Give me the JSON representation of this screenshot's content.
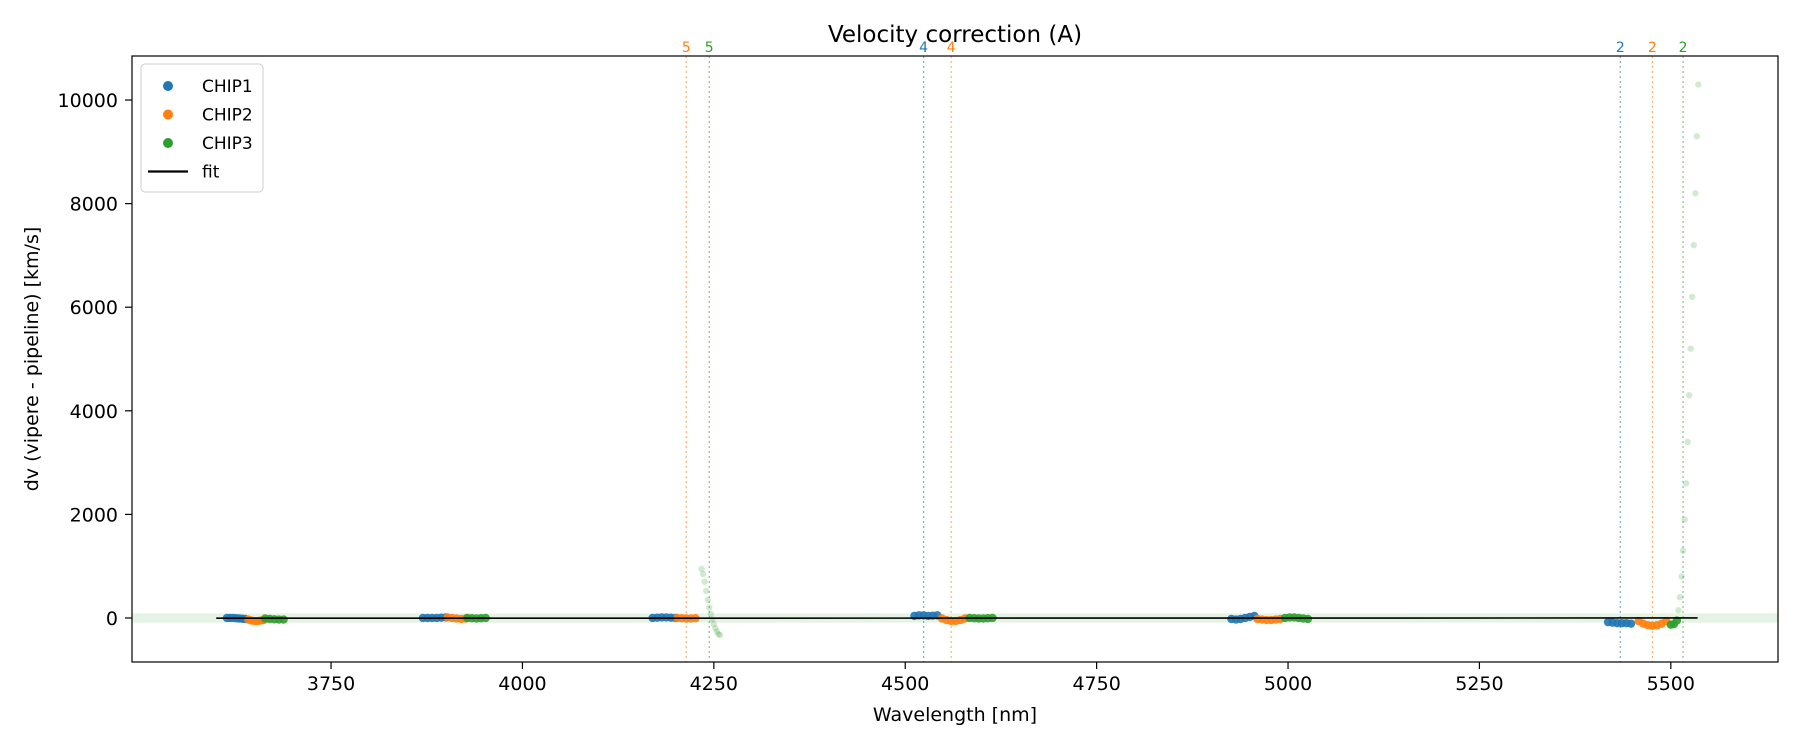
{
  "chart_data": {
    "type": "scatter",
    "title": "Velocity correction (A)",
    "xlabel": "Wavelength [nm]",
    "ylabel": "dv (vipere - pipeline) [km/s]",
    "xlim": [
      3490,
      5640
    ],
    "ylim": [
      -850,
      10850
    ],
    "xticks": [
      3750,
      4000,
      4250,
      4500,
      4750,
      5000,
      5250,
      5500
    ],
    "yticks": [
      0,
      2000,
      4000,
      6000,
      8000,
      10000
    ],
    "colors": {
      "CHIP1": "#1f77b4",
      "CHIP2": "#ff7f0e",
      "CHIP3": "#2ca02c",
      "fit": "#000000",
      "band": "#2ca02c"
    },
    "legend": {
      "position": "upper-left",
      "entries": [
        {
          "label": "CHIP1",
          "kind": "marker",
          "color": "#1f77b4"
        },
        {
          "label": "CHIP2",
          "kind": "marker",
          "color": "#ff7f0e"
        },
        {
          "label": "CHIP3",
          "kind": "marker",
          "color": "#2ca02c"
        },
        {
          "label": "fit",
          "kind": "line",
          "color": "#000000"
        }
      ]
    },
    "fit_line": {
      "x": [
        3600,
        5535
      ],
      "y": [
        -5,
        0
      ]
    },
    "band": {
      "y": [
        -90,
        90
      ]
    },
    "order_lines": [
      {
        "x": 4214,
        "label": "5",
        "chip": "CHIP2",
        "color": "#ff7f0e"
      },
      {
        "x": 4244,
        "label": "5",
        "chip": "CHIP3",
        "color": "#2ca02c"
      },
      {
        "x": 4524,
        "label": "4",
        "chip": "CHIP1",
        "color": "#1f77b4"
      },
      {
        "x": 4560,
        "label": "4",
        "chip": "CHIP2",
        "color": "#ff7f0e"
      },
      {
        "x": 5434,
        "label": "2",
        "chip": "CHIP1",
        "color": "#1f77b4"
      },
      {
        "x": 5476,
        "label": "2",
        "chip": "CHIP2",
        "color": "#ff7f0e"
      },
      {
        "x": 5516,
        "label": "2",
        "chip": "CHIP3",
        "color": "#2ca02c"
      }
    ],
    "series": [
      {
        "name": "CHIP1",
        "segment": 1,
        "x": [
          3614,
          3618,
          3622,
          3626,
          3630,
          3634,
          3638
        ],
        "y": [
          0,
          0,
          0,
          -5,
          -10,
          -15,
          -20
        ]
      },
      {
        "name": "CHIP2",
        "segment": 1,
        "x": [
          3642,
          3646,
          3650,
          3654,
          3658,
          3662
        ],
        "y": [
          -30,
          -50,
          -60,
          -60,
          -50,
          -40
        ]
      },
      {
        "name": "CHIP3",
        "segment": 1,
        "x": [
          3664,
          3670,
          3676,
          3682,
          3688
        ],
        "y": [
          -10,
          -20,
          -25,
          -30,
          -30
        ]
      },
      {
        "name": "CHIP1",
        "segment": 2,
        "x": [
          3870,
          3876,
          3882,
          3888,
          3894,
          3900
        ],
        "y": [
          0,
          0,
          0,
          0,
          5,
          10
        ]
      },
      {
        "name": "CHIP2",
        "segment": 2,
        "x": [
          3902,
          3908,
          3914,
          3920,
          3926
        ],
        "y": [
          10,
          0,
          -10,
          -20,
          -10
        ]
      },
      {
        "name": "CHIP3",
        "segment": 2,
        "x": [
          3928,
          3934,
          3940,
          3946,
          3952
        ],
        "y": [
          0,
          -5,
          -10,
          -5,
          0
        ]
      },
      {
        "name": "CHIP1",
        "segment": 3,
        "x": [
          4170,
          4176,
          4182,
          4188,
          4194,
          4200
        ],
        "y": [
          0,
          5,
          10,
          10,
          5,
          0
        ]
      },
      {
        "name": "CHIP2",
        "segment": 3,
        "x": [
          4202,
          4208,
          4214,
          4220,
          4226
        ],
        "y": [
          0,
          -5,
          -10,
          -10,
          -5
        ]
      },
      {
        "name": "CHIP3",
        "segment": 3,
        "faded": true,
        "x": [
          4234,
          4236,
          4238,
          4240,
          4242,
          4244,
          4246,
          4248,
          4250,
          4252,
          4254,
          4256,
          4258
        ],
        "y": [
          950,
          850,
          700,
          520,
          350,
          200,
          80,
          -30,
          -120,
          -200,
          -260,
          -310,
          -330
        ]
      },
      {
        "name": "CHIP1",
        "segment": 4,
        "x": [
          4512,
          4518,
          4524,
          4530,
          4536,
          4542
        ],
        "y": [
          40,
          50,
          50,
          40,
          45,
          50
        ]
      },
      {
        "name": "CHIP2",
        "segment": 4,
        "x": [
          4548,
          4554,
          4560,
          4566,
          4572,
          4578
        ],
        "y": [
          -10,
          -40,
          -60,
          -60,
          -40,
          -10
        ]
      },
      {
        "name": "CHIP3",
        "segment": 4,
        "x": [
          4584,
          4590,
          4596,
          4602,
          4608,
          4614
        ],
        "y": [
          0,
          -5,
          -10,
          -10,
          -5,
          0
        ]
      },
      {
        "name": "CHIP1",
        "segment": 5,
        "x": [
          4926,
          4932,
          4938,
          4944,
          4950,
          4956
        ],
        "y": [
          -20,
          -30,
          -20,
          0,
          20,
          40
        ]
      },
      {
        "name": "CHIP2",
        "segment": 5,
        "x": [
          4960,
          4966,
          4972,
          4978,
          4984,
          4990
        ],
        "y": [
          -20,
          -30,
          -40,
          -40,
          -30,
          -20
        ]
      },
      {
        "name": "CHIP3",
        "segment": 5,
        "x": [
          4996,
          5002,
          5008,
          5014,
          5020,
          5026
        ],
        "y": [
          0,
          10,
          10,
          0,
          -10,
          -20
        ]
      },
      {
        "name": "CHIP1",
        "segment": 6,
        "x": [
          5418,
          5424,
          5430,
          5436,
          5442,
          5448
        ],
        "y": [
          -80,
          -90,
          -100,
          -100,
          -100,
          -110
        ]
      },
      {
        "name": "CHIP2",
        "segment": 6,
        "x": [
          5458,
          5464,
          5470,
          5476,
          5482,
          5488,
          5494
        ],
        "y": [
          -60,
          -110,
          -140,
          -150,
          -140,
          -110,
          -60
        ]
      },
      {
        "name": "CHIP3",
        "segment": 6,
        "x": [
          5500,
          5504,
          5508
        ],
        "y": [
          -130,
          -120,
          -50
        ]
      },
      {
        "name": "CHIP3",
        "segment": 6,
        "faded": true,
        "x": [
          5510,
          5512,
          5514,
          5516,
          5518,
          5520,
          5522,
          5524,
          5526,
          5528,
          5530,
          5532,
          5534,
          5536
        ],
        "y": [
          150,
          400,
          800,
          1300,
          1900,
          2600,
          3400,
          4300,
          5200,
          6200,
          7200,
          8200,
          9300,
          10300
        ]
      }
    ]
  }
}
